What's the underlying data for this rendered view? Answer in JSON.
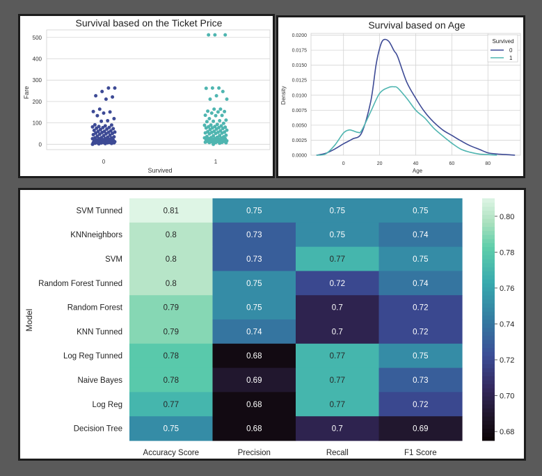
{
  "colors": {
    "page_bg": "#5a5a5a",
    "frame": "#1c1c1c",
    "survived_0": "#3d4a95",
    "survived_1": "#4fb5b0",
    "grid": "#d4d4d4"
  },
  "chart_data": [
    {
      "type": "scatter",
      "subtype": "strip",
      "title": "Survival based on the Ticket Price",
      "xlabel": "Survived",
      "ylabel": "Fare",
      "categories": [
        "0",
        "1"
      ],
      "ylim": [
        -25,
        535
      ],
      "yticks": [
        0,
        100,
        200,
        300,
        400,
        500
      ],
      "grid": "horizontal",
      "series": [
        {
          "category": "0",
          "color": "#3d4a95",
          "values": [
            0,
            2,
            3,
            4,
            5,
            6,
            7,
            7,
            7,
            8,
            8,
            8,
            8,
            9,
            9,
            10,
            10,
            11,
            12,
            13,
            13,
            14,
            15,
            16,
            18,
            20,
            21,
            22,
            24,
            26,
            26,
            27,
            29,
            30,
            31,
            33,
            35,
            38,
            40,
            42,
            45,
            47,
            49,
            51,
            52,
            55,
            56,
            57,
            60,
            61,
            63,
            65,
            69,
            71,
            73,
            75,
            78,
            79,
            81,
            83,
            86,
            90,
            91,
            108,
            110,
            120,
            134,
            146,
            151,
            153,
            164,
            211,
            221,
            227,
            247,
            263,
            263
          ]
        },
        {
          "category": "1",
          "color": "#4fb5b0",
          "values": [
            0,
            5,
            7,
            8,
            8,
            9,
            10,
            11,
            12,
            13,
            13,
            14,
            15,
            16,
            17,
            19,
            20,
            22,
            23,
            25,
            26,
            26,
            27,
            29,
            30,
            31,
            33,
            35,
            36,
            39,
            41,
            42,
            49,
            51,
            52,
            53,
            55,
            56,
            57,
            59,
            61,
            63,
            66,
            69,
            71,
            74,
            76,
            77,
            78,
            80,
            82,
            83,
            86,
            89,
            90,
            93,
            98,
            106,
            108,
            110,
            113,
            120,
            134,
            135,
            136,
            146,
            151,
            153,
            155,
            164,
            164,
            211,
            211,
            227,
            247,
            262,
            263,
            263,
            512,
            512,
            512
          ]
        }
      ]
    },
    {
      "type": "line",
      "subtype": "kde",
      "title": "Survival based on Age",
      "xlabel": "Age",
      "ylabel": "Density",
      "xlim": [
        -18,
        98
      ],
      "ylim": [
        0,
        0.0203
      ],
      "xticks": [
        0,
        20,
        40,
        60,
        80
      ],
      "yticks": [
        0,
        0.0025,
        0.005,
        0.0075,
        0.01,
        0.0125,
        0.015,
        0.0175,
        0.02
      ],
      "ytick_labels": [
        "0.0000",
        "0.0025",
        "0.0050",
        "0.0075",
        "0.0100",
        "0.0125",
        "0.0150",
        "0.0175",
        "0.0200"
      ],
      "grid": true,
      "legend": {
        "title": "Survived",
        "placement": "top-right"
      },
      "series": [
        {
          "name": "0",
          "color": "#3d4a95",
          "x": [
            -15,
            -10,
            -5,
            0,
            5,
            10,
            15,
            18,
            20,
            22,
            25,
            28,
            30,
            35,
            40,
            45,
            50,
            55,
            60,
            65,
            70,
            75,
            80,
            85,
            90,
            95
          ],
          "y": [
            0,
            0.0003,
            0.001,
            0.0019,
            0.0027,
            0.0037,
            0.0088,
            0.015,
            0.0178,
            0.0192,
            0.019,
            0.0174,
            0.0164,
            0.0122,
            0.0095,
            0.0072,
            0.0055,
            0.0042,
            0.0033,
            0.0024,
            0.0016,
            0.001,
            0.0004,
            0.0002,
            0.0001,
            0
          ]
        },
        {
          "name": "1",
          "color": "#4fb5b0",
          "x": [
            -15,
            -10,
            -5,
            0,
            3,
            5,
            8,
            10,
            15,
            20,
            25,
            28,
            30,
            35,
            40,
            45,
            50,
            55,
            60,
            65,
            70,
            75,
            80,
            85
          ],
          "y": [
            0,
            0.0002,
            0.0016,
            0.0037,
            0.0042,
            0.0041,
            0.0038,
            0.0041,
            0.0072,
            0.0103,
            0.0113,
            0.0114,
            0.0112,
            0.0095,
            0.0075,
            0.0062,
            0.0045,
            0.0032,
            0.002,
            0.001,
            0.0005,
            0.0002,
            0.0001,
            0
          ]
        }
      ]
    },
    {
      "type": "heatmap",
      "ylabel": "Model",
      "columns": [
        "Accuracy Score",
        "Precision",
        "Recall",
        "F1 Score"
      ],
      "rows": [
        "SVM Tunned",
        "KNNneighbors",
        "SVM",
        "Random Forest Tunned",
        "Random Forest",
        "KNN Tunned",
        "Log Reg Tunned",
        "Naive Bayes",
        "Log Reg",
        "Decision Tree"
      ],
      "values": [
        [
          0.81,
          0.75,
          0.75,
          0.75
        ],
        [
          0.8,
          0.73,
          0.75,
          0.74
        ],
        [
          0.8,
          0.73,
          0.77,
          0.75
        ],
        [
          0.8,
          0.75,
          0.72,
          0.74
        ],
        [
          0.79,
          0.75,
          0.7,
          0.72
        ],
        [
          0.79,
          0.74,
          0.7,
          0.72
        ],
        [
          0.78,
          0.68,
          0.77,
          0.75
        ],
        [
          0.78,
          0.69,
          0.77,
          0.73
        ],
        [
          0.77,
          0.68,
          0.77,
          0.72
        ],
        [
          0.75,
          0.68,
          0.7,
          0.69
        ]
      ],
      "colorscale": "mako",
      "vmin": 0.675,
      "vmax": 0.81,
      "colorbar": {
        "ticks": [
          0.68,
          0.7,
          0.72,
          0.74,
          0.76,
          0.78,
          0.8
        ],
        "tick_labels": [
          "0.68",
          "0.70",
          "0.72",
          "0.74",
          "0.76",
          "0.78",
          "0.80"
        ]
      }
    }
  ]
}
